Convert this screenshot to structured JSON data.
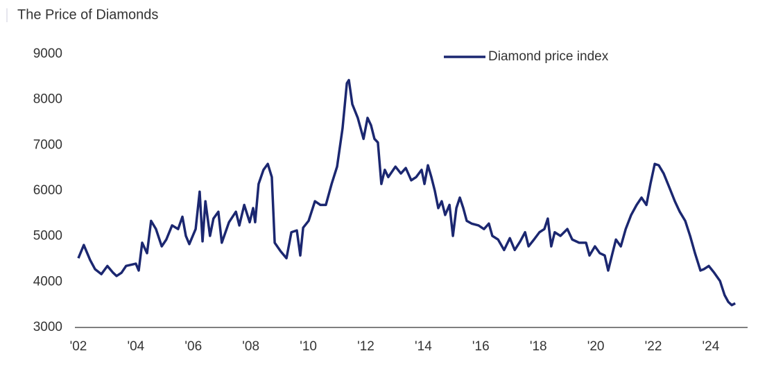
{
  "chart_data": {
    "type": "line",
    "title": "The Price of Diamonds",
    "x": [
      2002.0,
      2002.19,
      2002.41,
      2002.58,
      2002.8,
      2003.01,
      2003.21,
      2003.33,
      2003.5,
      2003.66,
      2004.0,
      2004.1,
      2004.22,
      2004.39,
      2004.53,
      2004.7,
      2004.9,
      2005.06,
      2005.26,
      2005.47,
      2005.62,
      2005.74,
      2005.86,
      2006.08,
      2006.22,
      2006.32,
      2006.42,
      2006.58,
      2006.7,
      2006.87,
      2006.99,
      2007.24,
      2007.48,
      2007.6,
      2007.77,
      2007.96,
      2008.08,
      2008.15,
      2008.27,
      2008.44,
      2008.59,
      2008.73,
      2008.83,
      2009.04,
      2009.24,
      2009.41,
      2009.6,
      2009.72,
      2009.82,
      2010.01,
      2010.23,
      2010.42,
      2010.61,
      2010.81,
      2011.0,
      2011.19,
      2011.34,
      2011.41,
      2011.53,
      2011.72,
      2011.92,
      2012.06,
      2012.18,
      2012.3,
      2012.42,
      2012.54,
      2012.66,
      2012.78,
      2013.03,
      2013.22,
      2013.39,
      2013.58,
      2013.75,
      2013.94,
      2014.04,
      2014.16,
      2014.28,
      2014.4,
      2014.52,
      2014.64,
      2014.76,
      2014.91,
      2015.03,
      2015.15,
      2015.27,
      2015.39,
      2015.51,
      2015.68,
      2015.92,
      2016.11,
      2016.28,
      2016.4,
      2016.6,
      2016.81,
      2017.01,
      2017.18,
      2017.37,
      2017.54,
      2017.66,
      2017.85,
      2018.04,
      2018.21,
      2018.33,
      2018.45,
      2018.57,
      2018.77,
      2019.01,
      2019.18,
      2019.42,
      2019.66,
      2019.78,
      2019.97,
      2020.14,
      2020.31,
      2020.43,
      2020.58,
      2020.7,
      2020.87,
      2021.04,
      2021.23,
      2021.42,
      2021.59,
      2021.76,
      2021.9,
      2022.05,
      2022.19,
      2022.36,
      2022.56,
      2022.75,
      2022.92,
      2023.11,
      2023.28,
      2023.45,
      2023.64,
      2023.76,
      2023.93,
      2024.12,
      2024.32,
      2024.48,
      2024.61,
      2024.73,
      2024.85
    ],
    "series": [
      {
        "name": "Diamond price index",
        "color": "#1b2770",
        "values": [
          4520,
          4810,
          4480,
          4280,
          4170,
          4350,
          4200,
          4130,
          4200,
          4350,
          4400,
          4250,
          4860,
          4630,
          5340,
          5160,
          4780,
          4930,
          5240,
          5160,
          5430,
          5010,
          4830,
          5160,
          5980,
          4890,
          5770,
          5010,
          5390,
          5540,
          4860,
          5310,
          5540,
          5240,
          5690,
          5310,
          5620,
          5310,
          6150,
          6460,
          6590,
          6300,
          4860,
          4670,
          4520,
          5090,
          5130,
          4580,
          5190,
          5340,
          5770,
          5690,
          5690,
          6150,
          6530,
          7370,
          8360,
          8430,
          7900,
          7600,
          7140,
          7600,
          7440,
          7140,
          7060,
          6150,
          6460,
          6300,
          6530,
          6380,
          6500,
          6230,
          6300,
          6460,
          6150,
          6560,
          6300,
          6000,
          5620,
          5770,
          5470,
          5690,
          5010,
          5620,
          5850,
          5620,
          5340,
          5280,
          5240,
          5160,
          5280,
          5010,
          4930,
          4700,
          4960,
          4700,
          4890,
          5090,
          4780,
          4930,
          5090,
          5160,
          5390,
          4780,
          5090,
          5010,
          5160,
          4930,
          4860,
          4860,
          4580,
          4780,
          4630,
          4580,
          4250,
          4630,
          4930,
          4780,
          5160,
          5470,
          5690,
          5850,
          5690,
          6150,
          6590,
          6560,
          6380,
          6070,
          5770,
          5540,
          5340,
          5010,
          4630,
          4250,
          4280,
          4350,
          4200,
          4020,
          3710,
          3560,
          3490,
          3530
        ]
      }
    ],
    "xlim": [
      2001.88,
      2025.28
    ],
    "xticks": [
      {
        "value": 2002,
        "label": "'02"
      },
      {
        "value": 2004,
        "label": "'04"
      },
      {
        "value": 2006,
        "label": "'06"
      },
      {
        "value": 2008,
        "label": "'08"
      },
      {
        "value": 2010,
        "label": "'10"
      },
      {
        "value": 2012,
        "label": "'12"
      },
      {
        "value": 2014,
        "label": "'14"
      },
      {
        "value": 2016,
        "label": "'16"
      },
      {
        "value": 2018,
        "label": "'18"
      },
      {
        "value": 2020,
        "label": "'20"
      },
      {
        "value": 2022,
        "label": "'22"
      },
      {
        "value": 2024,
        "label": "'24"
      }
    ],
    "ylim": [
      3000,
      9000
    ],
    "yticks": [
      3000,
      4000,
      5000,
      6000,
      7000,
      8000,
      9000
    ],
    "grid": false,
    "legend": "top-right"
  }
}
